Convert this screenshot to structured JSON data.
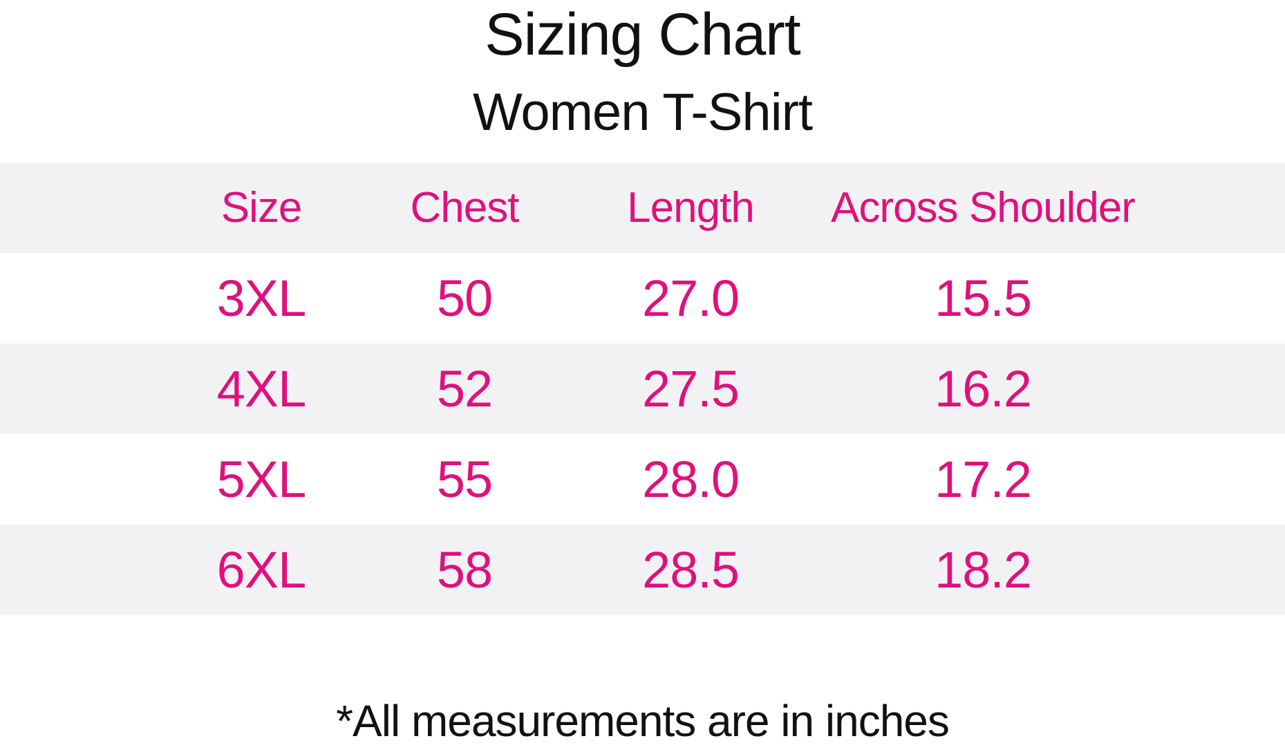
{
  "title": "Sizing Chart",
  "subtitle": "Women T-Shirt",
  "footnote": "*All measurements are in inches",
  "colors": {
    "accent_pink": "#E0107C",
    "row_stripe_gray": "#F2F2F4",
    "text_black": "#111111",
    "background": "#FFFFFF"
  },
  "chart_data": {
    "type": "table",
    "title": "Sizing Chart",
    "subtitle": "Women T-Shirt",
    "columns": [
      "Size",
      "Chest",
      "Length",
      "Across Shoulder"
    ],
    "rows": [
      [
        "3XL",
        "50",
        "27.0",
        "15.5"
      ],
      [
        "4XL",
        "52",
        "27.5",
        "16.2"
      ],
      [
        "5XL",
        "55",
        "28.0",
        "17.2"
      ],
      [
        "6XL",
        "58",
        "28.5",
        "18.2"
      ]
    ],
    "units_note": "*All measurements are in inches",
    "layout": {
      "striped_rows": true,
      "header_has_stripe": true,
      "value_color": "#E0107C",
      "grid_lines": false
    }
  }
}
